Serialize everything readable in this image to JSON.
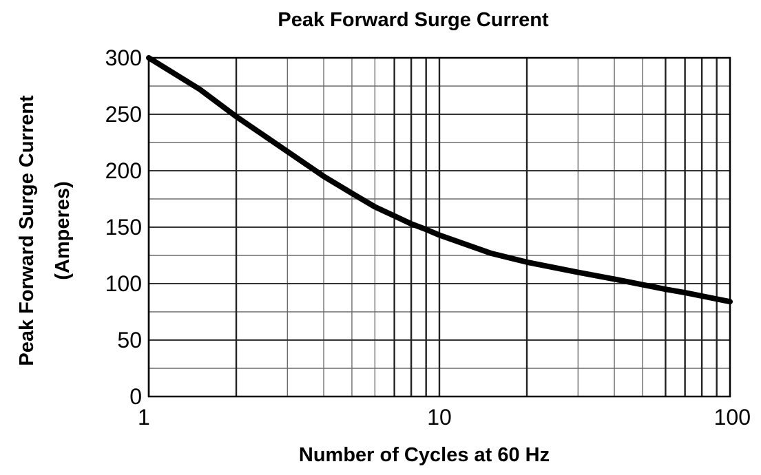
{
  "chart_data": {
    "type": "line",
    "title": "Peak Forward Surge Current",
    "xlabel": "Number of Cycles at 60 Hz",
    "ylabel_lines": [
      "Peak Forward Surge Current",
      "(Amperes)"
    ],
    "x_scale": "log",
    "xlim": [
      1,
      100
    ],
    "ylim": [
      0,
      300
    ],
    "x_ticks": [
      1,
      10,
      100
    ],
    "x_tick_labels": [
      "1",
      "10",
      "100"
    ],
    "y_ticks": [
      0,
      50,
      100,
      150,
      200,
      250,
      300
    ],
    "y_tick_labels": [
      "0",
      "50",
      "100",
      "150",
      "200",
      "250",
      "300"
    ],
    "grid": true,
    "series": [
      {
        "color": "#000000",
        "x": [
          1,
          1.5,
          2,
          3,
          4,
          5,
          6,
          7,
          8,
          9,
          10,
          15,
          20,
          30,
          40,
          50,
          60,
          70,
          80,
          100
        ],
        "y": [
          300,
          272,
          248,
          217,
          195,
          180,
          168,
          160,
          153,
          148,
          143,
          127,
          119,
          110,
          104,
          99,
          95,
          92,
          89,
          84
        ]
      }
    ]
  }
}
